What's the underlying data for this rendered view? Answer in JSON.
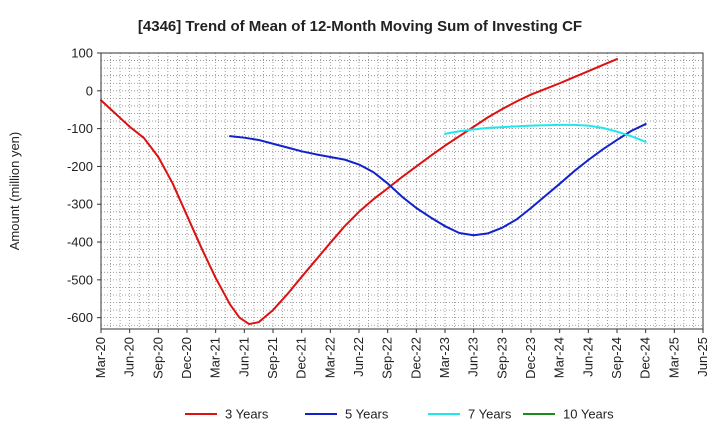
{
  "chart_data": {
    "type": "line",
    "title": "[4346]  Trend of Mean of 12-Month Moving Sum of Investing CF",
    "xlabel": "",
    "ylabel": "Amount (million yen)",
    "ylim": [
      -630,
      100
    ],
    "yticks": [
      100,
      0,
      -100,
      -200,
      -300,
      -400,
      -500,
      -600
    ],
    "ytick_labels": [
      "100",
      "0",
      "-100",
      "-200",
      "-300",
      "-400",
      "-500",
      "-600"
    ],
    "x_tick_labels": [
      "Mar-20",
      "Jun-20",
      "Sep-20",
      "Dec-20",
      "Mar-21",
      "Jun-21",
      "Sep-21",
      "Dec-21",
      "Mar-22",
      "Jun-22",
      "Sep-22",
      "Dec-22",
      "Mar-23",
      "Jun-23",
      "Sep-23",
      "Dec-23",
      "Mar-24",
      "Jun-24",
      "Sep-24",
      "Dec-24",
      "Mar-25",
      "Jun-25"
    ],
    "x_months_total": 63,
    "grid": true,
    "legend_position": "bottom",
    "series": [
      {
        "name": "3 Years",
        "color": "#dd1111",
        "points": [
          [
            0,
            -25
          ],
          [
            3,
            -60
          ],
          [
            6,
            -95
          ],
          [
            9,
            -125
          ],
          [
            12,
            -175
          ],
          [
            15,
            -245
          ],
          [
            18,
            -330
          ],
          [
            21,
            -415
          ],
          [
            24,
            -495
          ],
          [
            27,
            -565
          ],
          [
            29,
            -600
          ],
          [
            31,
            -617
          ],
          [
            33,
            -612
          ],
          [
            36,
            -580
          ],
          [
            39,
            -538
          ],
          [
            42,
            -492
          ],
          [
            45,
            -447
          ],
          [
            48,
            -402
          ],
          [
            51,
            -358
          ],
          [
            54,
            -320
          ],
          [
            57,
            -287
          ],
          [
            60,
            -258
          ],
          [
            63,
            -228
          ],
          [
            66,
            -200
          ],
          [
            69,
            -172
          ],
          [
            72,
            -145
          ],
          [
            75,
            -120
          ],
          [
            78,
            -95
          ],
          [
            81,
            -70
          ],
          [
            84,
            -48
          ],
          [
            87,
            -28
          ],
          [
            90,
            -10
          ],
          [
            93,
            5
          ],
          [
            96,
            20
          ],
          [
            99,
            36
          ],
          [
            102,
            52
          ],
          [
            105,
            68
          ],
          [
            108,
            84
          ]
        ]
      },
      {
        "name": "5 Years",
        "color": "#1122cc",
        "points": [
          [
            27,
            -120
          ],
          [
            30,
            -124
          ],
          [
            33,
            -130
          ],
          [
            36,
            -140
          ],
          [
            39,
            -150
          ],
          [
            42,
            -160
          ],
          [
            45,
            -168
          ],
          [
            48,
            -175
          ],
          [
            51,
            -182
          ],
          [
            54,
            -195
          ],
          [
            57,
            -215
          ],
          [
            60,
            -245
          ],
          [
            63,
            -280
          ],
          [
            66,
            -310
          ],
          [
            69,
            -335
          ],
          [
            72,
            -358
          ],
          [
            75,
            -376
          ],
          [
            78,
            -382
          ],
          [
            81,
            -377
          ],
          [
            84,
            -362
          ],
          [
            87,
            -340
          ],
          [
            90,
            -310
          ],
          [
            93,
            -278
          ],
          [
            96,
            -246
          ],
          [
            99,
            -213
          ],
          [
            102,
            -183
          ],
          [
            105,
            -155
          ],
          [
            108,
            -130
          ],
          [
            111,
            -106
          ],
          [
            114,
            -88
          ]
        ]
      },
      {
        "name": "7 Years",
        "color": "#22e5ee",
        "points": [
          [
            72,
            -114
          ],
          [
            75,
            -107
          ],
          [
            78,
            -102
          ],
          [
            81,
            -98
          ],
          [
            84,
            -96
          ],
          [
            87,
            -94
          ],
          [
            90,
            -92
          ],
          [
            93,
            -91
          ],
          [
            96,
            -90
          ],
          [
            99,
            -90
          ],
          [
            102,
            -92
          ],
          [
            105,
            -98
          ],
          [
            108,
            -108
          ],
          [
            111,
            -120
          ],
          [
            114,
            -135
          ]
        ]
      },
      {
        "name": "10 Years",
        "color": "#1a8a1a",
        "points": []
      }
    ]
  }
}
